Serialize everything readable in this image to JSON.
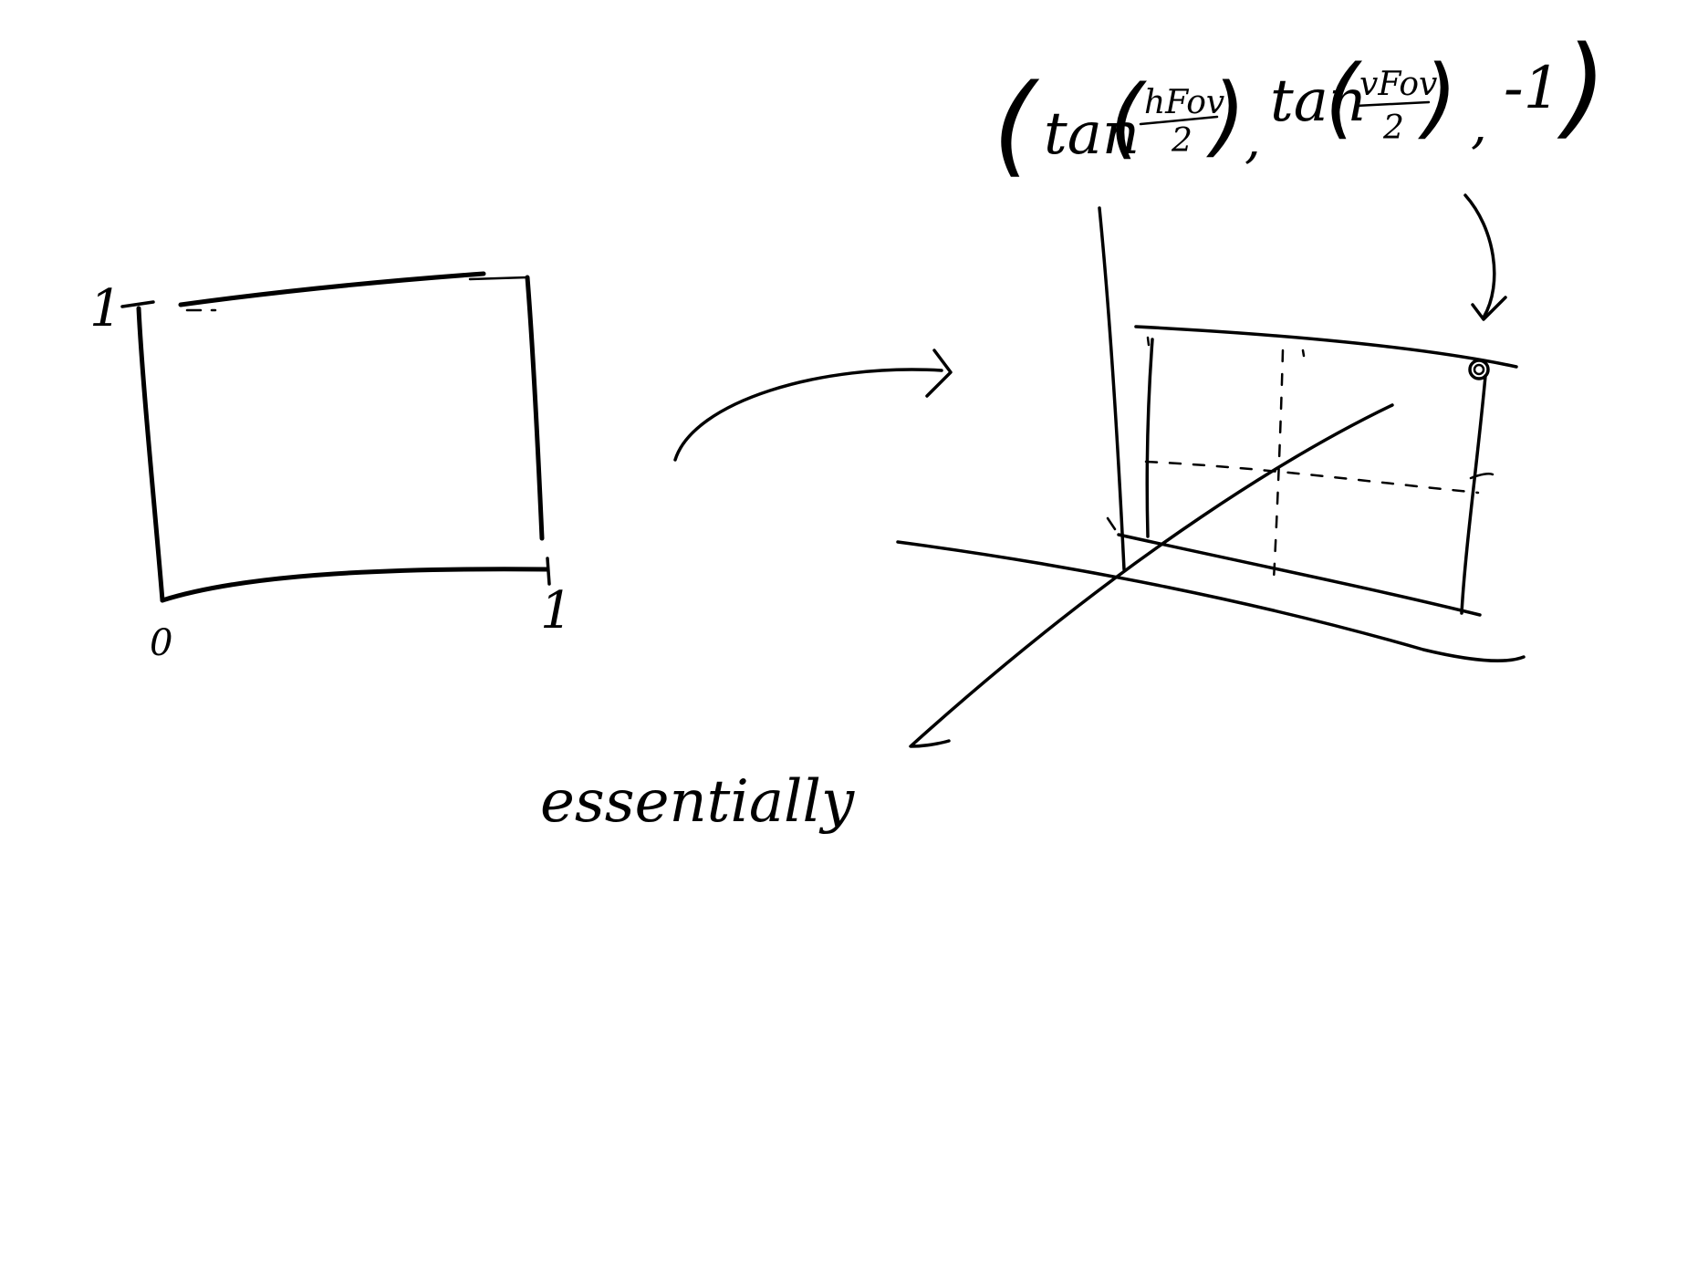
{
  "unit_square": {
    "label_y_max": "1",
    "label_origin": "0",
    "label_x_max": "1"
  },
  "annotation": {
    "word": "essentially"
  },
  "coordinate": {
    "open_paren": "(",
    "close_paren": ")",
    "x_func": "tan",
    "x_numerator": "hFov",
    "x_denominator": "2",
    "sep1": ",",
    "y_func": "tan",
    "y_numerator": "vFov",
    "y_denominator": "2",
    "sep2": ",",
    "z_value": "-1"
  }
}
